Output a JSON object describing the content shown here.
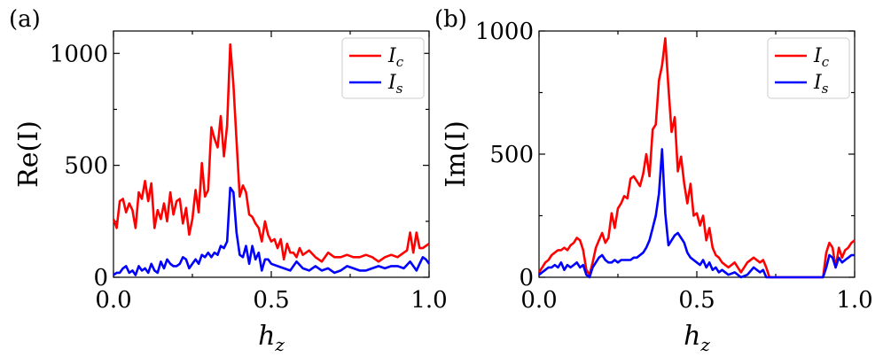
{
  "chart_data": [
    {
      "type": "line",
      "panel_label": "(a)",
      "xlabel": "h",
      "xlabel_sub": "z",
      "ylabel": "Re(I)",
      "xlim": [
        0,
        1
      ],
      "ylim": [
        0,
        1100
      ],
      "xticks": [
        0,
        0.5,
        1
      ],
      "xtick_labels": [
        "0.0",
        "0.5",
        "1.0"
      ],
      "yticks": [
        0,
        500,
        1000
      ],
      "ytick_labels": [
        "0",
        "500",
        "1000"
      ],
      "legend_position": "top-right",
      "series": [
        {
          "name": "I",
          "name_sub": "c",
          "color": "#ff0000",
          "x": [
            0,
            0.01,
            0.02,
            0.03,
            0.04,
            0.05,
            0.06,
            0.07,
            0.08,
            0.09,
            0.1,
            0.11,
            0.12,
            0.13,
            0.14,
            0.15,
            0.16,
            0.17,
            0.18,
            0.19,
            0.2,
            0.21,
            0.22,
            0.23,
            0.24,
            0.25,
            0.26,
            0.27,
            0.28,
            0.29,
            0.3,
            0.31,
            0.32,
            0.33,
            0.34,
            0.35,
            0.36,
            0.37,
            0.38,
            0.39,
            0.4,
            0.41,
            0.42,
            0.43,
            0.44,
            0.45,
            0.46,
            0.47,
            0.48,
            0.49,
            0.5,
            0.51,
            0.52,
            0.53,
            0.54,
            0.55,
            0.56,
            0.57,
            0.58,
            0.59,
            0.6,
            0.62,
            0.64,
            0.66,
            0.68,
            0.7,
            0.72,
            0.74,
            0.76,
            0.78,
            0.8,
            0.82,
            0.84,
            0.86,
            0.88,
            0.9,
            0.92,
            0.93,
            0.94,
            0.95,
            0.96,
            0.97,
            0.98,
            0.99,
            1.0
          ],
          "values": [
            260,
            220,
            340,
            350,
            290,
            330,
            300,
            220,
            380,
            350,
            430,
            340,
            420,
            220,
            300,
            260,
            330,
            250,
            380,
            280,
            340,
            350,
            240,
            310,
            190,
            260,
            390,
            290,
            510,
            360,
            390,
            670,
            620,
            580,
            720,
            540,
            680,
            1040,
            860,
            610,
            360,
            410,
            380,
            280,
            270,
            240,
            220,
            160,
            250,
            190,
            160,
            170,
            130,
            170,
            80,
            150,
            110,
            110,
            90,
            130,
            100,
            120,
            90,
            70,
            110,
            90,
            90,
            100,
            90,
            90,
            100,
            90,
            70,
            90,
            100,
            90,
            110,
            120,
            200,
            110,
            200,
            130,
            130,
            140,
            150
          ]
        },
        {
          "name": "I",
          "name_sub": "s",
          "color": "#0000ff",
          "x": [
            0,
            0.01,
            0.02,
            0.03,
            0.04,
            0.05,
            0.06,
            0.07,
            0.08,
            0.09,
            0.1,
            0.11,
            0.12,
            0.13,
            0.14,
            0.15,
            0.16,
            0.17,
            0.18,
            0.19,
            0.2,
            0.21,
            0.22,
            0.23,
            0.24,
            0.25,
            0.26,
            0.27,
            0.28,
            0.29,
            0.3,
            0.31,
            0.32,
            0.33,
            0.34,
            0.35,
            0.36,
            0.37,
            0.38,
            0.39,
            0.4,
            0.41,
            0.42,
            0.43,
            0.44,
            0.45,
            0.46,
            0.47,
            0.48,
            0.49,
            0.5,
            0.52,
            0.54,
            0.56,
            0.58,
            0.6,
            0.62,
            0.64,
            0.66,
            0.68,
            0.7,
            0.72,
            0.74,
            0.76,
            0.78,
            0.8,
            0.82,
            0.84,
            0.86,
            0.88,
            0.9,
            0.92,
            0.94,
            0.96,
            0.97,
            0.98,
            0.99,
            1.0
          ],
          "values": [
            10,
            20,
            20,
            40,
            50,
            20,
            30,
            10,
            50,
            30,
            40,
            20,
            60,
            30,
            20,
            70,
            40,
            80,
            60,
            50,
            50,
            60,
            90,
            80,
            40,
            60,
            80,
            60,
            100,
            90,
            110,
            90,
            110,
            100,
            140,
            130,
            160,
            400,
            380,
            200,
            100,
            90,
            140,
            60,
            140,
            80,
            110,
            30,
            80,
            80,
            60,
            50,
            40,
            30,
            70,
            40,
            30,
            50,
            30,
            40,
            20,
            30,
            50,
            40,
            30,
            30,
            40,
            50,
            40,
            50,
            50,
            40,
            70,
            30,
            60,
            90,
            80,
            60
          ]
        }
      ]
    },
    {
      "type": "line",
      "panel_label": "(b)",
      "xlabel": "h",
      "xlabel_sub": "z",
      "ylabel": "Im(I)",
      "xlim": [
        0,
        1
      ],
      "ylim": [
        0,
        1000
      ],
      "xticks": [
        0,
        0.5,
        1
      ],
      "xtick_labels": [
        "0.0",
        "0.5",
        "1.0"
      ],
      "yticks": [
        0,
        500,
        1000
      ],
      "ytick_labels": [
        "0",
        "500",
        "1000"
      ],
      "legend_position": "top-right",
      "series": [
        {
          "name": "I",
          "name_sub": "c",
          "color": "#ff0000",
          "x": [
            0,
            0.01,
            0.02,
            0.03,
            0.04,
            0.05,
            0.06,
            0.07,
            0.08,
            0.09,
            0.1,
            0.11,
            0.12,
            0.13,
            0.14,
            0.15,
            0.16,
            0.17,
            0.18,
            0.19,
            0.2,
            0.21,
            0.22,
            0.23,
            0.24,
            0.25,
            0.26,
            0.27,
            0.28,
            0.29,
            0.3,
            0.31,
            0.32,
            0.33,
            0.34,
            0.35,
            0.36,
            0.37,
            0.38,
            0.39,
            0.4,
            0.41,
            0.42,
            0.43,
            0.44,
            0.45,
            0.46,
            0.47,
            0.48,
            0.49,
            0.5,
            0.51,
            0.52,
            0.53,
            0.54,
            0.55,
            0.56,
            0.57,
            0.58,
            0.6,
            0.62,
            0.64,
            0.66,
            0.68,
            0.7,
            0.71,
            0.72,
            0.73,
            0.74,
            0.76,
            0.8,
            0.85,
            0.89,
            0.9,
            0.91,
            0.92,
            0.93,
            0.94,
            0.95,
            0.96,
            0.97,
            0.98,
            0.99,
            1.0
          ],
          "values": [
            20,
            40,
            60,
            70,
            90,
            100,
            110,
            110,
            120,
            110,
            130,
            140,
            160,
            150,
            110,
            30,
            10,
            60,
            120,
            150,
            180,
            140,
            160,
            260,
            200,
            280,
            300,
            330,
            320,
            400,
            410,
            390,
            370,
            420,
            500,
            410,
            600,
            620,
            800,
            860,
            970,
            770,
            590,
            650,
            430,
            490,
            380,
            300,
            380,
            250,
            260,
            210,
            250,
            150,
            200,
            120,
            90,
            80,
            60,
            40,
            60,
            20,
            60,
            80,
            60,
            70,
            40,
            0,
            0,
            0,
            0,
            0,
            0,
            0,
            100,
            140,
            120,
            40,
            120,
            80,
            110,
            120,
            140,
            150
          ]
        },
        {
          "name": "I",
          "name_sub": "s",
          "color": "#0000ff",
          "x": [
            0,
            0.01,
            0.02,
            0.03,
            0.04,
            0.05,
            0.06,
            0.07,
            0.08,
            0.09,
            0.1,
            0.11,
            0.12,
            0.13,
            0.14,
            0.15,
            0.16,
            0.17,
            0.18,
            0.19,
            0.2,
            0.21,
            0.22,
            0.23,
            0.24,
            0.25,
            0.26,
            0.27,
            0.28,
            0.29,
            0.3,
            0.31,
            0.32,
            0.33,
            0.34,
            0.35,
            0.36,
            0.37,
            0.38,
            0.39,
            0.4,
            0.41,
            0.42,
            0.43,
            0.44,
            0.45,
            0.46,
            0.47,
            0.48,
            0.49,
            0.5,
            0.51,
            0.52,
            0.53,
            0.54,
            0.55,
            0.56,
            0.57,
            0.58,
            0.6,
            0.62,
            0.64,
            0.66,
            0.68,
            0.7,
            0.71,
            0.72,
            0.73,
            0.74,
            0.76,
            0.8,
            0.85,
            0.89,
            0.9,
            0.91,
            0.92,
            0.93,
            0.94,
            0.95,
            0.96,
            0.97,
            0.98,
            0.99,
            1.0
          ],
          "values": [
            10,
            20,
            30,
            40,
            40,
            50,
            40,
            60,
            30,
            50,
            40,
            50,
            60,
            40,
            50,
            10,
            0,
            40,
            60,
            80,
            90,
            70,
            60,
            60,
            70,
            60,
            70,
            70,
            70,
            70,
            80,
            80,
            90,
            100,
            120,
            150,
            200,
            250,
            340,
            520,
            260,
            130,
            150,
            170,
            180,
            160,
            140,
            100,
            80,
            70,
            60,
            50,
            70,
            40,
            60,
            30,
            40,
            20,
            30,
            10,
            20,
            0,
            10,
            40,
            20,
            30,
            0,
            0,
            0,
            0,
            0,
            0,
            0,
            0,
            40,
            90,
            80,
            40,
            80,
            60,
            70,
            80,
            90,
            90
          ]
        }
      ]
    }
  ]
}
